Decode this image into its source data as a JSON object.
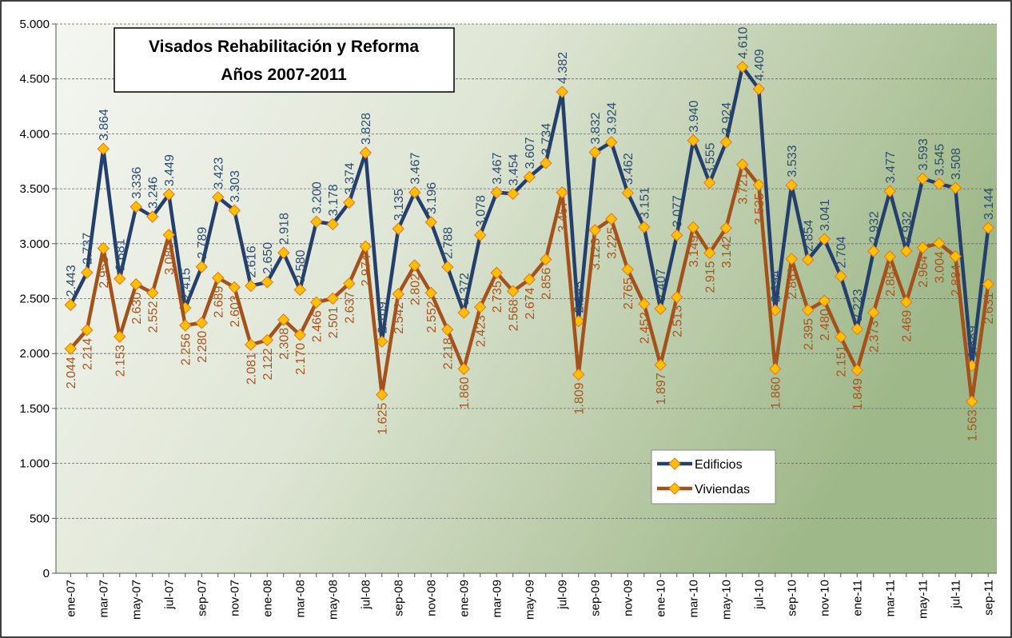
{
  "chart_data": {
    "type": "line",
    "title": "Visados Rehabilitación y Reforma",
    "subtitle": "Años 2007-2011",
    "categories": [
      "ene-07",
      null,
      "mar-07",
      null,
      "may-07",
      null,
      "jul-07",
      null,
      "sep-07",
      null,
      "nov-07",
      null,
      "ene-08",
      null,
      "mar-08",
      null,
      "may-08",
      null,
      "jul-08",
      null,
      "sep-08",
      null,
      "nov-08",
      null,
      "ene-09",
      null,
      "mar-09",
      null,
      "may-09",
      null,
      "jul-09",
      null,
      "sep-09",
      null,
      "nov-09",
      null,
      "ene-10",
      null,
      "mar-10",
      null,
      "may-10",
      null,
      "jul-10",
      null,
      "sep-10",
      null,
      "nov-10",
      null,
      "ene-11",
      null,
      "mar-11",
      null,
      "may-11",
      null,
      "jul-11",
      null,
      "sep-11"
    ],
    "series": [
      {
        "name": "Edificios",
        "color": "#243f6b",
        "label_color": "#2f4d72",
        "values": [
          2443,
          2737,
          3864,
          2681,
          3336,
          3246,
          3449,
          2415,
          2789,
          3423,
          3303,
          2616,
          2650,
          2918,
          2580,
          3200,
          3178,
          3374,
          3828,
          2109,
          3135,
          3467,
          3196,
          2788,
          2372,
          3078,
          3467,
          3454,
          3607,
          3734,
          4382,
          2295,
          3832,
          3924,
          3462,
          3151,
          2407,
          3077,
          3940,
          3555,
          3924,
          4610,
          4409,
          2394,
          3533,
          2854,
          3041,
          2704,
          2223,
          2932,
          3477,
          2932,
          3593,
          3545,
          3508,
          1889,
          3144
        ],
        "value_labels": [
          "2.443",
          "2.737",
          "3.864",
          "2.681",
          "3.336",
          "3.246",
          "3.449",
          "2.415",
          "2.789",
          "3.423",
          "3.303",
          "2.616",
          "2.650",
          "2.918",
          "2.580",
          "3.200",
          "3.178",
          "3.374",
          "3.828",
          "2.109",
          "3.135",
          "3.467",
          "3.196",
          "2.788",
          "2.372",
          "3.078",
          "3.467",
          "3.454",
          "3.607",
          "3.734",
          "4.382",
          "2.295",
          "3.832",
          "3.924",
          "3.462",
          "3.151",
          "2.407",
          "3.077",
          "3.940",
          "3.555",
          "3.924",
          "4.610",
          "4.409",
          "2.394",
          "3.533",
          "2.854",
          "3.041",
          "2.704",
          "2.223",
          "2.932",
          "3.477",
          "2.932",
          "3.593",
          "3.545",
          "3.508",
          "1.889",
          "3.144"
        ]
      },
      {
        "name": "Viviendas",
        "color": "#a3521b",
        "label_color": "#a8561e",
        "values": [
          2044,
          2214,
          2958,
          2153,
          2630,
          2552,
          3080,
          2256,
          2280,
          2689,
          2603,
          2081,
          2122,
          2308,
          2170,
          2466,
          2501,
          2637,
          2974,
          1625,
          2542,
          2802,
          2552,
          2218,
          1860,
          2423,
          2735,
          2568,
          2674,
          2856,
          3467,
          1809,
          3123,
          3225,
          2765,
          2452,
          1897,
          2513,
          3149,
          2915,
          3142,
          3721,
          3535,
          1860,
          2861,
          2395,
          2480,
          2151,
          1849,
          2373,
          2883,
          2469,
          2964,
          3004,
          2884,
          1563,
          2631
        ],
        "value_labels": [
          "2.044",
          "2.214",
          "2.958",
          "2.153",
          "2.630",
          "2.552",
          "3.080",
          "2.256",
          "2.280",
          "2.689",
          "2.603",
          "2.081",
          "2.122",
          "2.308",
          "2.170",
          "2.466",
          "2.501",
          "2.637",
          "2.974",
          "1.625",
          "2.542",
          "2.802",
          "2.552",
          "2.218",
          "1.860",
          "2.423",
          "2.735",
          "2.568",
          "2.674",
          "2.856",
          "3.467",
          "1.809",
          "3.123",
          "3.225",
          "2.765",
          "2.452",
          "1.897",
          "2.513",
          "3.149",
          "2.915",
          "3.142",
          "3.721",
          "3.535",
          "1.860",
          "2.861",
          "2.395",
          "2.480",
          "2.151",
          "1.849",
          "2.373",
          "2.883",
          "2.469",
          "2.964",
          "3.004",
          "2.884",
          "1.563",
          "2.631"
        ]
      }
    ],
    "marker_color": "#ffc000",
    "ylim": [
      0,
      5000
    ],
    "yticks": [
      0,
      500,
      {
        "value": 1000,
        "label": "1.000"
      },
      {
        "value": 1500,
        "label": "1.500"
      },
      {
        "value": 2000,
        "label": "2.000"
      },
      {
        "value": 2500,
        "label": "2.500"
      },
      {
        "value": 3000,
        "label": "3.000"
      },
      {
        "value": 3500,
        "label": "3.500"
      },
      {
        "value": 4000,
        "label": "4.000"
      },
      {
        "value": 4500,
        "label": "4.500"
      },
      {
        "value": 5000,
        "label": "5.000"
      }
    ],
    "grid": true,
    "legend": "lower-right"
  }
}
